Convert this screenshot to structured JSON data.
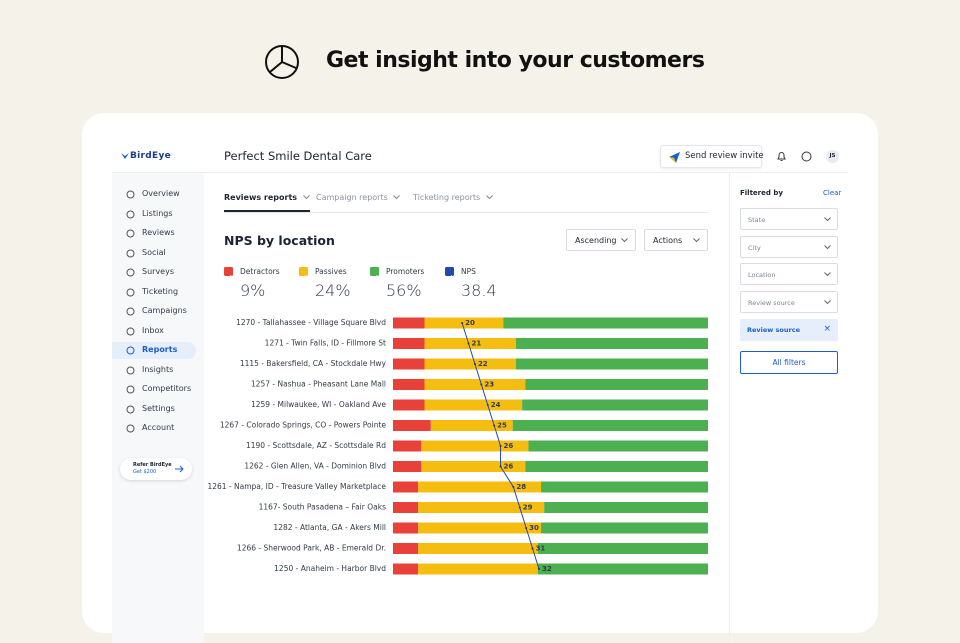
{
  "header": {
    "title": "Get insight into your customers"
  },
  "app": {
    "brand": "BirdEye",
    "business": "Perfect Smile Dental Care",
    "invite_button": "Send review invite",
    "avatar": "JS",
    "nav": [
      {
        "label": "Overview"
      },
      {
        "label": "Listings"
      },
      {
        "label": "Reviews"
      },
      {
        "label": "Social"
      },
      {
        "label": "Surveys"
      },
      {
        "label": "Ticketing"
      },
      {
        "label": "Campaigns"
      },
      {
        "label": "Inbox"
      },
      {
        "label": "Reports",
        "active": true
      },
      {
        "label": "Insights"
      },
      {
        "label": "Competitors"
      },
      {
        "label": "Settings"
      },
      {
        "label": "Account"
      }
    ],
    "refer": {
      "title": "Refer BirdEye",
      "subtitle": "Get $200"
    },
    "tabs": [
      {
        "label": "Reviews reports",
        "active": true
      },
      {
        "label": "Campaign reports"
      },
      {
        "label": "Ticketing reports"
      }
    ],
    "controls": [
      "Ascending",
      "Actions"
    ],
    "filters": {
      "title": "Filtered by",
      "clear": "Clear",
      "dropdowns": [
        "State",
        "City",
        "Location",
        "Review source"
      ],
      "chip": "Review source",
      "all_button": "All filters"
    }
  },
  "chart_data": {
    "type": "stacked-bar-with-line",
    "title": "NPS by location",
    "categories": [
      "1270 - Tallahassee - Village Square Blvd",
      "1271 - Twin Falls, ID - Fillmore St",
      "1115 - Bakersfield, CA - Stockdale Hwy",
      "1257 - Nashua - Pheasant Lane Mall",
      "1259 - Milwaukee, WI - Oakland Ave",
      "1267 - Colorado Springs, CO - Powers Pointe",
      "1190 - Scottsdale, AZ - Scottsdale Rd",
      "1262 - Glen Allen, VA - Dominion Blvd",
      "1261 - Nampa, ID - Treasure Valley Marketplace",
      "1167- South Pasadena – Fair Oaks",
      "1282 - Atlanta, GA - Akers Mill",
      "1266 - Sherwood Park, AB - Emerald Dr.",
      "1250 - Anaheim - Harbor Blvd"
    ],
    "xlim": [
      0,
      100
    ],
    "series": [
      {
        "name": "Detractors",
        "color": "#e8413a",
        "total": 9,
        "total_label": "9%",
        "values": [
          10,
          10,
          10,
          10,
          10,
          12,
          9,
          9,
          8,
          8,
          8,
          8,
          8
        ]
      },
      {
        "name": "Passives",
        "color": "#f5bd10",
        "total": 24,
        "total_label": "24%",
        "values": [
          25,
          29,
          29,
          32,
          31,
          26,
          34,
          33,
          39,
          40,
          39,
          38,
          38
        ]
      },
      {
        "name": "Promoters",
        "color": "#4caf50",
        "total": 56,
        "total_label": "56%",
        "values": [
          65,
          61,
          61,
          58,
          59,
          62,
          57,
          58,
          53,
          52,
          53,
          54,
          54
        ]
      }
    ],
    "nps": {
      "name": "NPS",
      "color": "#1f4aa8",
      "total": 38.4,
      "xlim": [
        9.2,
        58.4
      ],
      "values": [
        20,
        21,
        22,
        23,
        24,
        25,
        26,
        26,
        28,
        29,
        30,
        31,
        32
      ]
    }
  }
}
